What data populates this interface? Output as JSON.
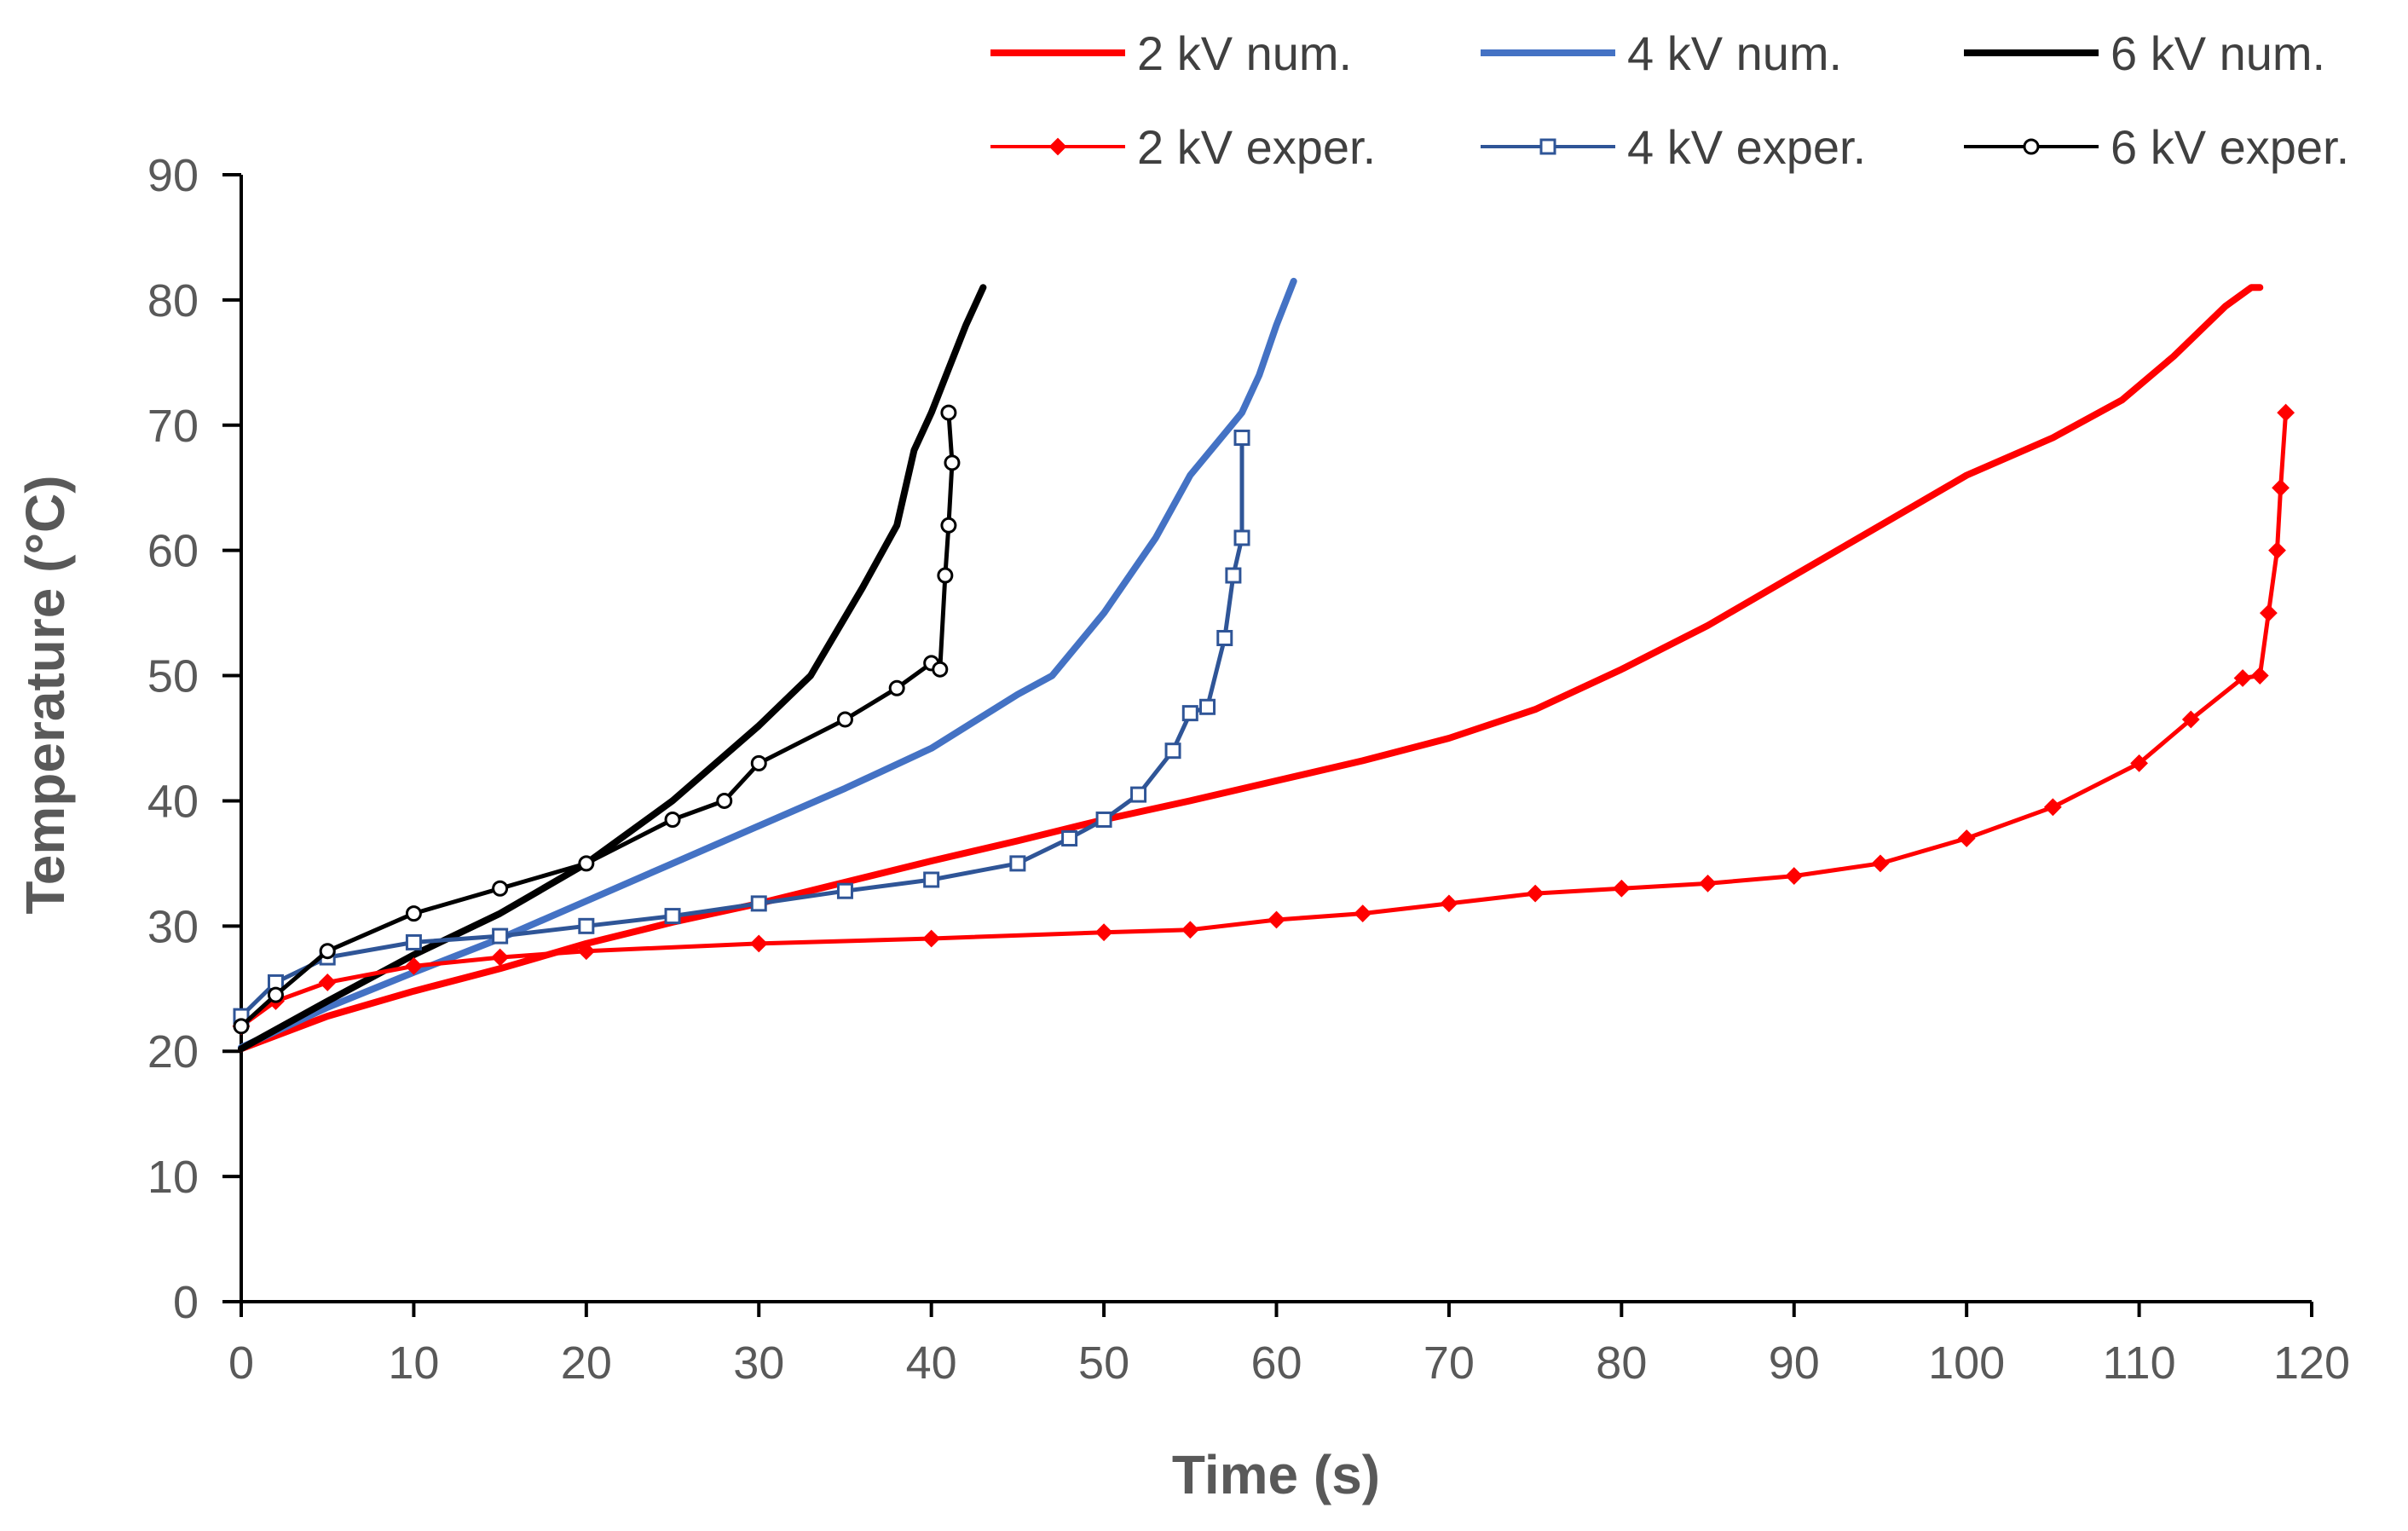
{
  "chart_data": {
    "type": "line",
    "title": "",
    "xlabel": "Time (s)",
    "ylabel": "Temperature (°C)",
    "xlim": [
      0,
      120
    ],
    "ylim": [
      0,
      90
    ],
    "x_ticks": [
      0,
      10,
      20,
      30,
      40,
      50,
      60,
      70,
      80,
      90,
      100,
      110,
      120
    ],
    "y_ticks": [
      0,
      10,
      20,
      30,
      40,
      50,
      60,
      70,
      80,
      90
    ],
    "grid": false,
    "legend_position": "top",
    "series": [
      {
        "name": "2 kV num.",
        "color": "#ff0000",
        "marker": "none",
        "points": [
          [
            0,
            20.2
          ],
          [
            5,
            22.8
          ],
          [
            10,
            24.8
          ],
          [
            15,
            26.6
          ],
          [
            20,
            28.6
          ],
          [
            25,
            30.3
          ],
          [
            30,
            31.8
          ],
          [
            35,
            33.5
          ],
          [
            40,
            35.2
          ],
          [
            45,
            36.8
          ],
          [
            50,
            38.5
          ],
          [
            55,
            40.0
          ],
          [
            60,
            41.6
          ],
          [
            65,
            43.2
          ],
          [
            70,
            45.0
          ],
          [
            75,
            47.3
          ],
          [
            80,
            50.5
          ],
          [
            85,
            54.0
          ],
          [
            90,
            58.0
          ],
          [
            95,
            62.0
          ],
          [
            100,
            66.0
          ],
          [
            105,
            69.0
          ],
          [
            109,
            72.0
          ],
          [
            112,
            75.5
          ],
          [
            115,
            79.5
          ],
          [
            116.5,
            81.0
          ],
          [
            117,
            81.0
          ]
        ]
      },
      {
        "name": "4 kV num.",
        "color": "#4472c4",
        "marker": "none",
        "points": [
          [
            0,
            20.3
          ],
          [
            5,
            23.5
          ],
          [
            10,
            26.3
          ],
          [
            15,
            29.0
          ],
          [
            20,
            32.0
          ],
          [
            25,
            35.0
          ],
          [
            30,
            38.0
          ],
          [
            35,
            41.0
          ],
          [
            40,
            44.2
          ],
          [
            45,
            48.5
          ],
          [
            47,
            50.0
          ],
          [
            50,
            55.0
          ],
          [
            53,
            61.0
          ],
          [
            55,
            66.0
          ],
          [
            58,
            71.0
          ],
          [
            59,
            74.0
          ],
          [
            60,
            78.0
          ],
          [
            61,
            81.5
          ]
        ]
      },
      {
        "name": "6 kV num.",
        "color": "#000000",
        "marker": "none",
        "points": [
          [
            0,
            20.2
          ],
          [
            5,
            24.0
          ],
          [
            10,
            27.7
          ],
          [
            15,
            31.0
          ],
          [
            20,
            35.0
          ],
          [
            25,
            40.0
          ],
          [
            30,
            46.0
          ],
          [
            33,
            50.0
          ],
          [
            36,
            57.0
          ],
          [
            38,
            62.0
          ],
          [
            39,
            68.0
          ],
          [
            40,
            71.0
          ],
          [
            41,
            74.5
          ],
          [
            42,
            78.0
          ],
          [
            43,
            81.0
          ]
        ]
      },
      {
        "name": "2 kV exper.",
        "color": "#ff0000",
        "marker": "diamond",
        "points": [
          [
            0,
            22.0
          ],
          [
            2,
            24.0
          ],
          [
            5,
            25.5
          ],
          [
            10,
            26.8
          ],
          [
            15,
            27.5
          ],
          [
            20,
            28.0
          ],
          [
            30,
            28.6
          ],
          [
            40,
            29.0
          ],
          [
            50,
            29.5
          ],
          [
            55,
            29.7
          ],
          [
            60,
            30.5
          ],
          [
            65,
            31.0
          ],
          [
            70,
            31.8
          ],
          [
            75,
            32.6
          ],
          [
            80,
            33.0
          ],
          [
            85,
            33.4
          ],
          [
            90,
            34.0
          ],
          [
            95,
            35.0
          ],
          [
            100,
            37.0
          ],
          [
            105,
            39.5
          ],
          [
            110,
            43.0
          ],
          [
            113,
            46.5
          ],
          [
            116,
            49.8
          ],
          [
            117,
            50.0
          ],
          [
            117.5,
            55.0
          ],
          [
            118,
            60.0
          ],
          [
            118.2,
            65.0
          ],
          [
            118.5,
            71.0
          ]
        ]
      },
      {
        "name": "4 kV exper.",
        "color": "#2f5597",
        "marker": "square",
        "points": [
          [
            0,
            22.8
          ],
          [
            2,
            25.5
          ],
          [
            5,
            27.5
          ],
          [
            10,
            28.7
          ],
          [
            15,
            29.2
          ],
          [
            20,
            30.0
          ],
          [
            25,
            30.8
          ],
          [
            30,
            31.8
          ],
          [
            35,
            32.8
          ],
          [
            40,
            33.7
          ],
          [
            45,
            35.0
          ],
          [
            48,
            37.0
          ],
          [
            50,
            38.5
          ],
          [
            52,
            40.5
          ],
          [
            54,
            44.0
          ],
          [
            55,
            47.0
          ],
          [
            56,
            47.5
          ],
          [
            57,
            53.0
          ],
          [
            57.5,
            58.0
          ],
          [
            58,
            61.0
          ],
          [
            58,
            69.0
          ]
        ]
      },
      {
        "name": "6 kV exper.",
        "color": "#000000",
        "marker": "circle",
        "points": [
          [
            0,
            22.0
          ],
          [
            2,
            24.5
          ],
          [
            5,
            28.0
          ],
          [
            10,
            31.0
          ],
          [
            15,
            33.0
          ],
          [
            20,
            35.0
          ],
          [
            25,
            38.5
          ],
          [
            28,
            40.0
          ],
          [
            30,
            43.0
          ],
          [
            35,
            46.5
          ],
          [
            38,
            49.0
          ],
          [
            40,
            51.0
          ],
          [
            40.5,
            50.5
          ],
          [
            40.8,
            58.0
          ],
          [
            41,
            62.0
          ],
          [
            41.2,
            67.0
          ],
          [
            41,
            71.0
          ]
        ]
      }
    ]
  }
}
